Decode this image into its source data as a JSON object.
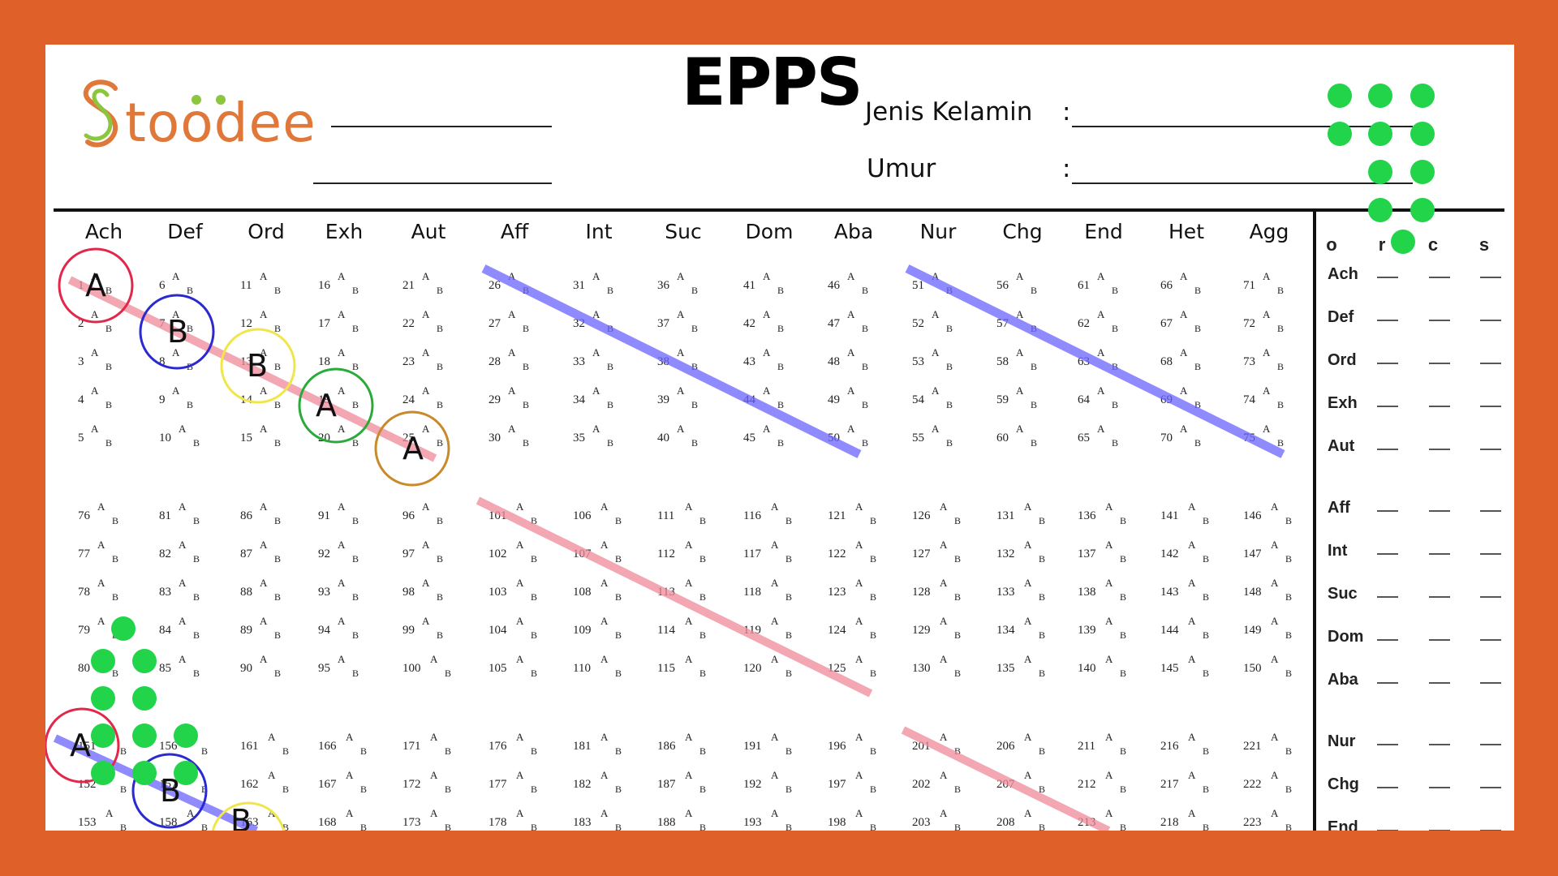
{
  "title": "EPPS",
  "logo": {
    "text": "toodee",
    "s_letter": "S"
  },
  "fields": [
    {
      "label": "Jenis Kelamin",
      "colon": ":"
    },
    {
      "label": "Umur",
      "colon": ":"
    }
  ],
  "categories": [
    "Ach",
    "Def",
    "Ord",
    "Exh",
    "Aut",
    "Aff",
    "Int",
    "Suc",
    "Dom",
    "Aba",
    "Nur",
    "Chg",
    "End",
    "Het",
    "Agg"
  ],
  "option_labels": {
    "a": "A",
    "b": "B"
  },
  "block_starts": [
    1,
    76,
    151
  ],
  "score_headers": [
    "o",
    "r",
    "c",
    "s"
  ],
  "score_rows": [
    "Ach",
    "Def",
    "Ord",
    "Exh",
    "Aut",
    "Aff",
    "Int",
    "Suc",
    "Dom",
    "Aba",
    "Nur",
    "Chg",
    "End"
  ],
  "circled_answers": [
    "A",
    "B",
    "B",
    "A",
    "A"
  ],
  "lower_circled_answers": [
    "A",
    "B",
    "B"
  ],
  "colors": {
    "frame": "#e0602a",
    "logo_s": "#8cc63f",
    "blue_band": "#6c63ff",
    "pink_band": "#f08a9a",
    "dot": "#22d44a"
  }
}
